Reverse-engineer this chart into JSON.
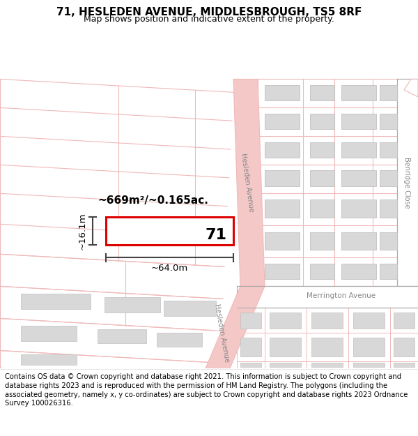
{
  "title": "71, HESLEDEN AVENUE, MIDDLESBROUGH, TS5 8RF",
  "subtitle": "Map shows position and indicative extent of the property.",
  "footer": "Contains OS data © Crown copyright and database right 2021. This information is subject to Crown copyright and database rights 2023 and is reproduced with the permission of HM Land Registry. The polygons (including the associated geometry, namely x, y co-ordinates) are subject to Crown copyright and database rights 2023 Ordnance Survey 100026316.",
  "map_bg": "#ffffff",
  "road_color": "#f0b8b8",
  "road_fill": "#f5c8c8",
  "building_fill": "#d8d8d8",
  "building_edge": "#c0c0c0",
  "highlight_color": "#dd0000",
  "highlight_fill": "#ffffff",
  "label_71": "71",
  "area_label": "~669m²/~0.165ac.",
  "width_label": "~64.0m",
  "height_label": "~16.1m",
  "street_hesleden": "Hesleden Avenue",
  "street_hesleden2": "Hesleden Avenue",
  "street_merrington": "Merrington Avenue",
  "street_benridge": "Benridge Close",
  "title_fontsize": 11,
  "subtitle_fontsize": 9,
  "footer_fontsize": 7.2
}
